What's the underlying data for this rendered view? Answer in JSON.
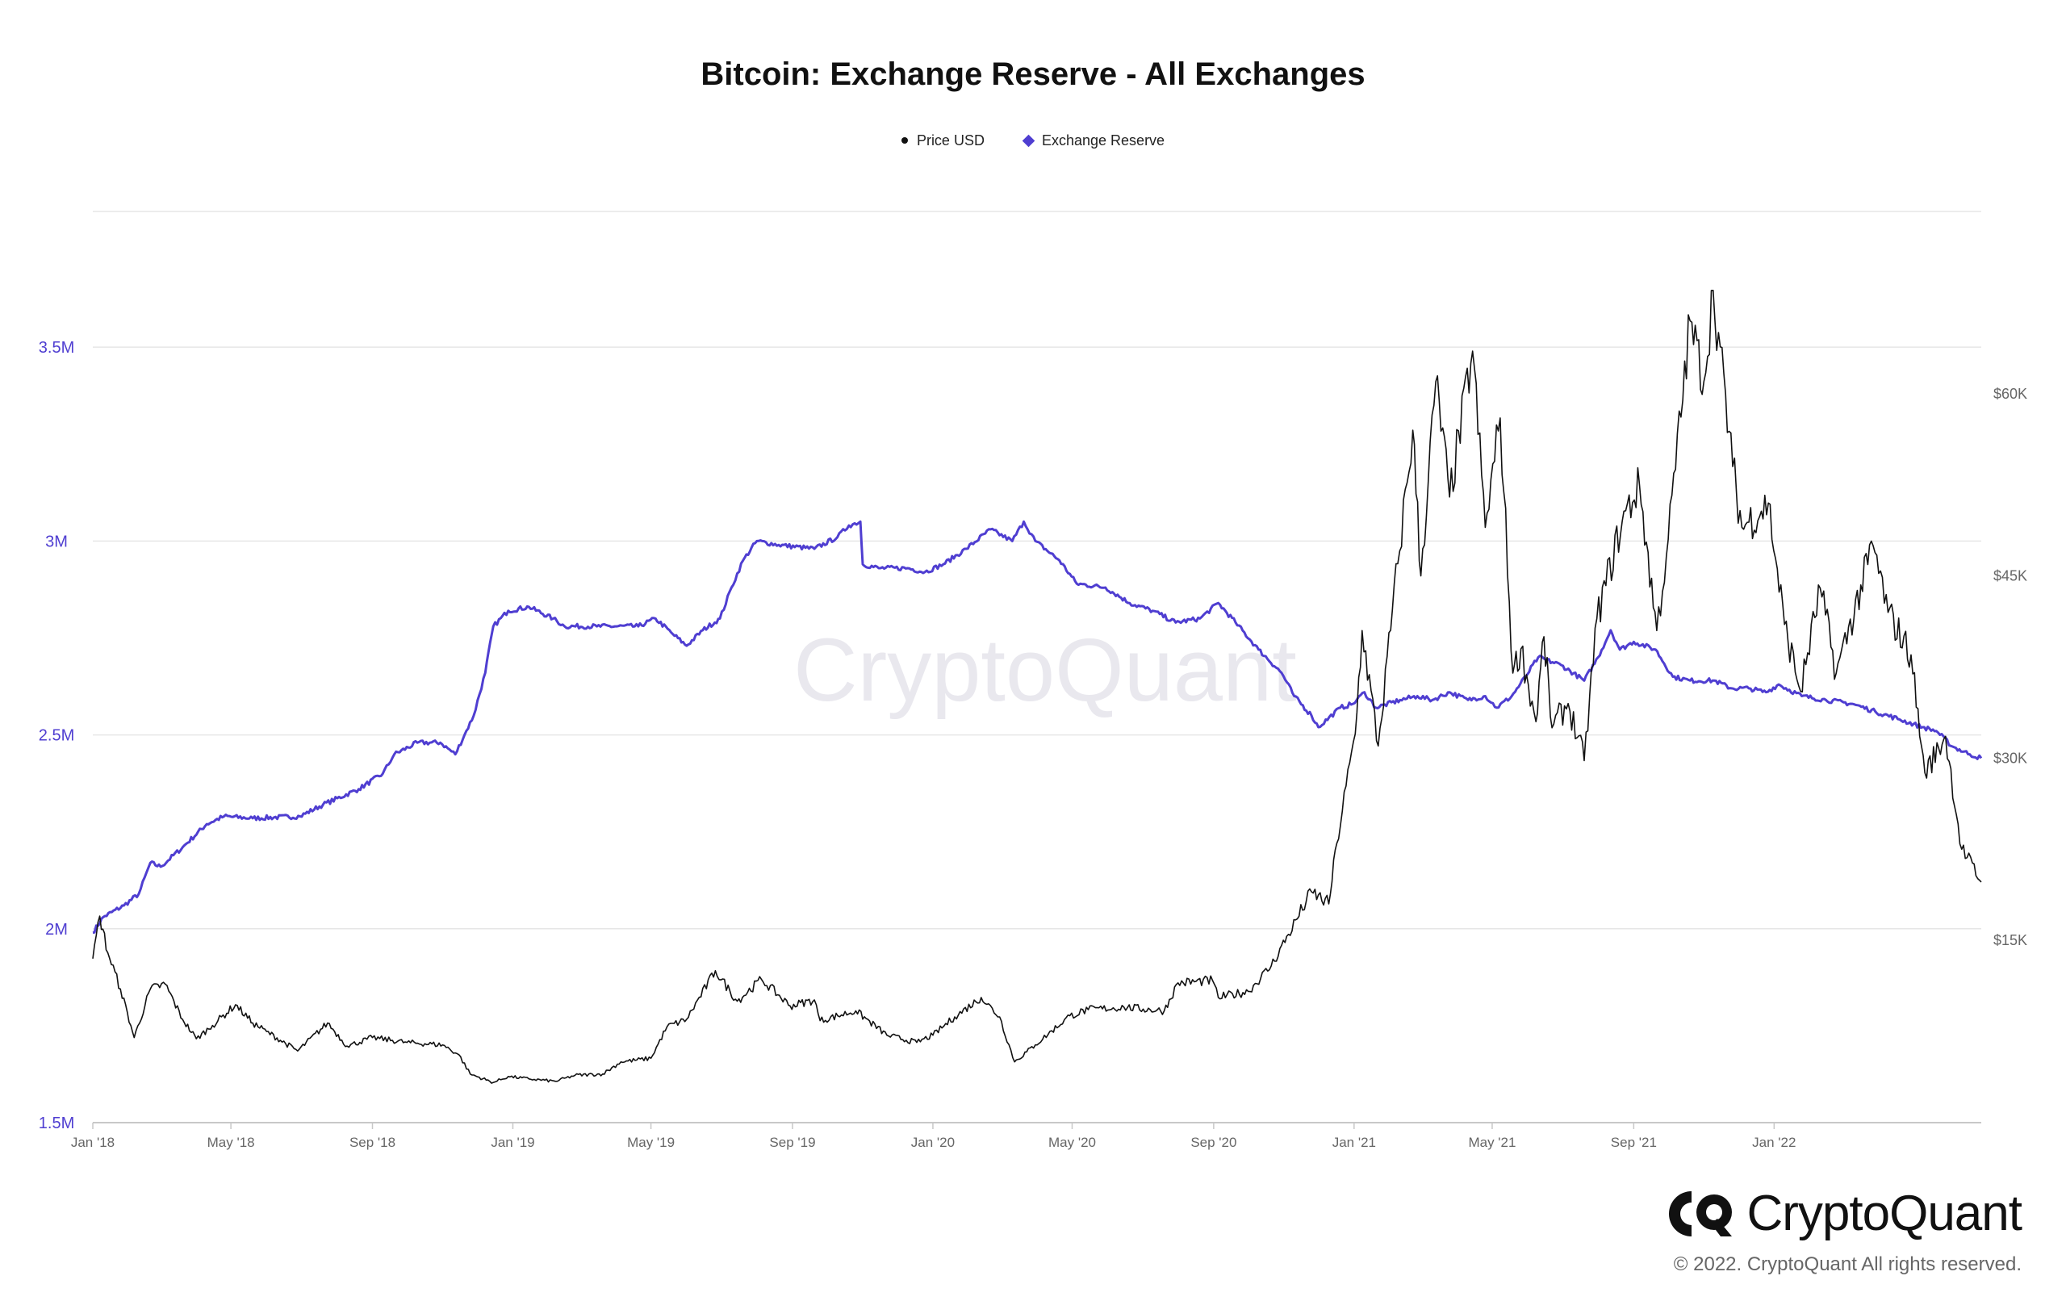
{
  "chart_data": {
    "type": "line",
    "title": "Bitcoin: Exchange Reserve - All Exchanges",
    "legend": {
      "position": "top-center"
    },
    "grid": true,
    "watermark": "CryptoQuant",
    "colors": {
      "price": "#111111",
      "reserve": "#4f3ed1"
    },
    "x_ticks": [
      "Jan '18",
      "May '18",
      "Sep '18",
      "Jan '19",
      "May '19",
      "Sep '19",
      "Jan '20",
      "May '20",
      "Sep '20",
      "Jan '21",
      "May '21",
      "Sep '21",
      "Jan '22"
    ],
    "xlim": [
      "2018-01-01",
      "2022-06-30"
    ],
    "y_left": {
      "ticks": [
        "1.5M",
        "2M",
        "2.5M",
        "3M",
        "3.5M"
      ],
      "ylim": [
        1500000,
        3850000
      ]
    },
    "y_right": {
      "ticks": [
        "$15K",
        "$30K",
        "$45K",
        "$60K"
      ],
      "ylim": [
        0,
        75000
      ]
    },
    "series": [
      {
        "name": "Price USD",
        "axis": "right",
        "points": [
          [
            "2018-01-01",
            13500
          ],
          [
            "2018-01-07",
            17000
          ],
          [
            "2018-01-14",
            14000
          ],
          [
            "2018-01-25",
            11000
          ],
          [
            "2018-02-06",
            7000
          ],
          [
            "2018-02-20",
            11000
          ],
          [
            "2018-03-05",
            11400
          ],
          [
            "2018-03-20",
            8500
          ],
          [
            "2018-04-01",
            6900
          ],
          [
            "2018-04-15",
            8000
          ],
          [
            "2018-05-05",
            9700
          ],
          [
            "2018-05-20",
            8200
          ],
          [
            "2018-06-01",
            7500
          ],
          [
            "2018-06-28",
            5900
          ],
          [
            "2018-07-24",
            8200
          ],
          [
            "2018-08-10",
            6300
          ],
          [
            "2018-09-01",
            7000
          ],
          [
            "2018-10-01",
            6600
          ],
          [
            "2018-11-01",
            6400
          ],
          [
            "2018-11-15",
            5600
          ],
          [
            "2018-11-25",
            4000
          ],
          [
            "2018-12-15",
            3300
          ],
          [
            "2018-12-28",
            3800
          ],
          [
            "2019-01-15",
            3600
          ],
          [
            "2019-02-07",
            3400
          ],
          [
            "2019-02-24",
            3900
          ],
          [
            "2019-03-20",
            4000
          ],
          [
            "2019-04-05",
            5000
          ],
          [
            "2019-05-01",
            5300
          ],
          [
            "2019-05-15",
            7900
          ],
          [
            "2019-06-01",
            8500
          ],
          [
            "2019-06-26",
            12500
          ],
          [
            "2019-07-15",
            10000
          ],
          [
            "2019-08-05",
            11800
          ],
          [
            "2019-08-30",
            9600
          ],
          [
            "2019-09-20",
            10100
          ],
          [
            "2019-09-25",
            8400
          ],
          [
            "2019-10-26",
            9200
          ],
          [
            "2019-11-22",
            7200
          ],
          [
            "2019-12-18",
            6600
          ],
          [
            "2020-01-01",
            7200
          ],
          [
            "2020-01-20",
            8700
          ],
          [
            "2020-02-12",
            10300
          ],
          [
            "2020-02-28",
            8700
          ],
          [
            "2020-03-12",
            5000
          ],
          [
            "2020-03-30",
            6400
          ],
          [
            "2020-04-29",
            8800
          ],
          [
            "2020-05-15",
            9300
          ],
          [
            "2020-06-15",
            9500
          ],
          [
            "2020-07-20",
            9200
          ],
          [
            "2020-08-01",
            11500
          ],
          [
            "2020-08-31",
            11700
          ],
          [
            "2020-09-05",
            10300
          ],
          [
            "2020-10-01",
            10800
          ],
          [
            "2020-10-21",
            12900
          ],
          [
            "2020-11-05",
            15500
          ],
          [
            "2020-11-25",
            19000
          ],
          [
            "2020-12-10",
            18000
          ],
          [
            "2020-12-17",
            23000
          ],
          [
            "2021-01-02",
            32000
          ],
          [
            "2021-01-08",
            40500
          ],
          [
            "2021-01-22",
            31000
          ],
          [
            "2021-02-08",
            46000
          ],
          [
            "2021-02-21",
            57000
          ],
          [
            "2021-02-28",
            45000
          ],
          [
            "2021-03-13",
            61000
          ],
          [
            "2021-03-25",
            51500
          ],
          [
            "2021-04-14",
            63500
          ],
          [
            "2021-04-25",
            49000
          ],
          [
            "2021-05-08",
            58000
          ],
          [
            "2021-05-19",
            37000
          ],
          [
            "2021-05-26",
            39000
          ],
          [
            "2021-06-08",
            33000
          ],
          [
            "2021-06-15",
            40000
          ],
          [
            "2021-06-22",
            32500
          ],
          [
            "2021-07-06",
            34500
          ],
          [
            "2021-07-20",
            29800
          ],
          [
            "2021-07-31",
            41500
          ],
          [
            "2021-08-22",
            49500
          ],
          [
            "2021-09-06",
            52500
          ],
          [
            "2021-09-21",
            40500
          ],
          [
            "2021-10-01",
            48000
          ],
          [
            "2021-10-20",
            66000
          ],
          [
            "2021-11-01",
            61000
          ],
          [
            "2021-11-09",
            68500
          ],
          [
            "2021-11-26",
            54000
          ],
          [
            "2021-12-04",
            49000
          ],
          [
            "2021-12-27",
            51000
          ],
          [
            "2022-01-10",
            41000
          ],
          [
            "2022-01-24",
            35500
          ],
          [
            "2022-02-10",
            44000
          ],
          [
            "2022-02-24",
            37000
          ],
          [
            "2022-03-28",
            47500
          ],
          [
            "2022-04-10",
            42000
          ],
          [
            "2022-04-30",
            38500
          ],
          [
            "2022-05-09",
            31000
          ],
          [
            "2022-05-12",
            28800
          ],
          [
            "2022-05-30",
            31800
          ],
          [
            "2022-06-13",
            22500
          ],
          [
            "2022-06-30",
            19800
          ]
        ]
      },
      {
        "name": "Exchange Reserve",
        "axis": "left",
        "points": [
          [
            "2018-01-01",
            1990000
          ],
          [
            "2018-01-10",
            2030000
          ],
          [
            "2018-01-28",
            2060000
          ],
          [
            "2018-02-10",
            2090000
          ],
          [
            "2018-02-20",
            2170000
          ],
          [
            "2018-03-01",
            2160000
          ],
          [
            "2018-03-20",
            2210000
          ],
          [
            "2018-04-10",
            2270000
          ],
          [
            "2018-04-25",
            2290000
          ],
          [
            "2018-05-20",
            2285000
          ],
          [
            "2018-06-30",
            2290000
          ],
          [
            "2018-07-20",
            2320000
          ],
          [
            "2018-08-20",
            2360000
          ],
          [
            "2018-09-10",
            2400000
          ],
          [
            "2018-09-20",
            2450000
          ],
          [
            "2018-10-10",
            2480000
          ],
          [
            "2018-10-30",
            2480000
          ],
          [
            "2018-11-12",
            2450000
          ],
          [
            "2018-11-20",
            2500000
          ],
          [
            "2018-11-28",
            2550000
          ],
          [
            "2018-12-08",
            2660000
          ],
          [
            "2018-12-15",
            2780000
          ],
          [
            "2018-12-28",
            2820000
          ],
          [
            "2019-01-15",
            2830000
          ],
          [
            "2019-02-05",
            2800000
          ],
          [
            "2019-02-15",
            2780000
          ],
          [
            "2019-03-15",
            2780000
          ],
          [
            "2019-04-20",
            2780000
          ],
          [
            "2019-05-05",
            2800000
          ],
          [
            "2019-05-20",
            2760000
          ],
          [
            "2019-06-01",
            2730000
          ],
          [
            "2019-06-15",
            2770000
          ],
          [
            "2019-06-30",
            2800000
          ],
          [
            "2019-07-10",
            2880000
          ],
          [
            "2019-07-20",
            2950000
          ],
          [
            "2019-08-01",
            3000000
          ],
          [
            "2019-08-20",
            2990000
          ],
          [
            "2019-09-20",
            2980000
          ],
          [
            "2019-10-10",
            3010000
          ],
          [
            "2019-10-20",
            3040000
          ],
          [
            "2019-10-30",
            3050000
          ],
          [
            "2019-11-01",
            2940000
          ],
          [
            "2019-11-15",
            2930000
          ],
          [
            "2019-12-10",
            2930000
          ],
          [
            "2019-12-25",
            2920000
          ],
          [
            "2020-01-10",
            2940000
          ],
          [
            "2020-01-30",
            2980000
          ],
          [
            "2020-02-20",
            3030000
          ],
          [
            "2020-03-10",
            3000000
          ],
          [
            "2020-03-20",
            3050000
          ],
          [
            "2020-03-30",
            3000000
          ],
          [
            "2020-04-20",
            2950000
          ],
          [
            "2020-05-05",
            2890000
          ],
          [
            "2020-05-30",
            2880000
          ],
          [
            "2020-06-20",
            2840000
          ],
          [
            "2020-07-10",
            2820000
          ],
          [
            "2020-07-30",
            2790000
          ],
          [
            "2020-08-20",
            2800000
          ],
          [
            "2020-09-05",
            2840000
          ],
          [
            "2020-09-20",
            2790000
          ],
          [
            "2020-10-10",
            2720000
          ],
          [
            "2020-10-30",
            2660000
          ],
          [
            "2020-11-10",
            2600000
          ],
          [
            "2020-11-25",
            2550000
          ],
          [
            "2020-12-01",
            2520000
          ],
          [
            "2020-12-20",
            2570000
          ],
          [
            "2020-12-31",
            2580000
          ],
          [
            "2021-01-10",
            2610000
          ],
          [
            "2021-01-20",
            2570000
          ],
          [
            "2021-02-10",
            2590000
          ],
          [
            "2021-02-25",
            2600000
          ],
          [
            "2021-03-10",
            2590000
          ],
          [
            "2021-03-25",
            2610000
          ],
          [
            "2021-04-10",
            2590000
          ],
          [
            "2021-04-25",
            2600000
          ],
          [
            "2021-05-05",
            2570000
          ],
          [
            "2021-05-18",
            2600000
          ],
          [
            "2021-05-30",
            2650000
          ],
          [
            "2021-06-10",
            2700000
          ],
          [
            "2021-06-30",
            2680000
          ],
          [
            "2021-07-20",
            2640000
          ],
          [
            "2021-08-01",
            2700000
          ],
          [
            "2021-08-12",
            2770000
          ],
          [
            "2021-08-20",
            2720000
          ],
          [
            "2021-09-01",
            2740000
          ],
          [
            "2021-09-20",
            2720000
          ],
          [
            "2021-10-05",
            2650000
          ],
          [
            "2021-10-20",
            2640000
          ],
          [
            "2021-11-10",
            2640000
          ],
          [
            "2021-11-25",
            2620000
          ],
          [
            "2021-12-10",
            2620000
          ],
          [
            "2021-12-25",
            2610000
          ],
          [
            "2022-01-05",
            2630000
          ],
          [
            "2022-01-25",
            2600000
          ],
          [
            "2022-02-15",
            2590000
          ],
          [
            "2022-03-10",
            2580000
          ],
          [
            "2022-03-30",
            2560000
          ],
          [
            "2022-04-20",
            2540000
          ],
          [
            "2022-05-10",
            2520000
          ],
          [
            "2022-05-22",
            2510000
          ],
          [
            "2022-06-05",
            2470000
          ],
          [
            "2022-06-20",
            2450000
          ],
          [
            "2022-06-30",
            2440000
          ]
        ]
      }
    ]
  },
  "brand": {
    "name": "CryptoQuant",
    "copyright": "© 2022. CryptoQuant All rights reserved."
  }
}
